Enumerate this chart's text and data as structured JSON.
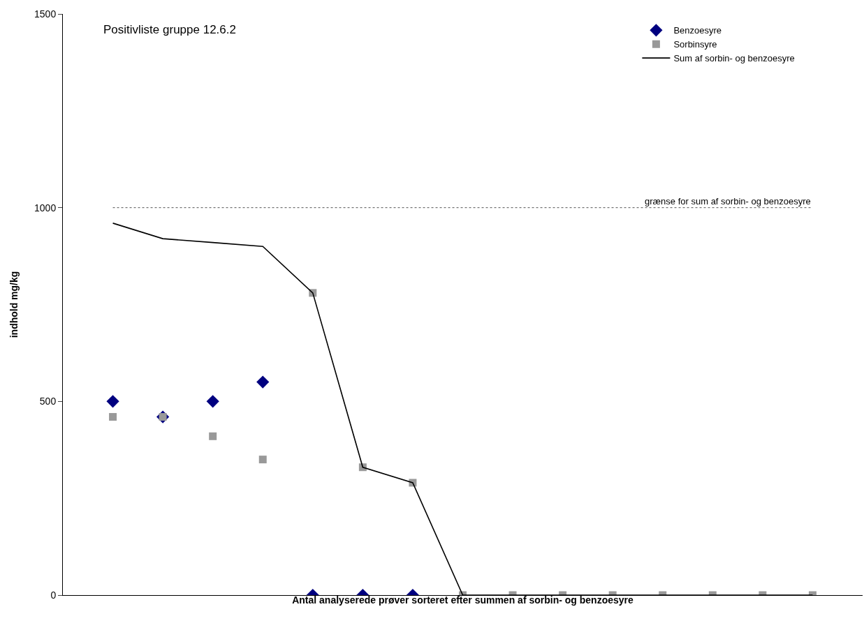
{
  "chart_data": {
    "type": "scatter",
    "title": "Positivliste gruppe 12.6.2",
    "xlabel": "Antal analyserede prøver sorteret efter summen af sorbin- og benzoesyre",
    "ylabel": "indhold mg/kg",
    "categories": [
      null,
      null,
      null,
      null,
      null,
      null,
      null,
      null,
      null,
      null,
      null,
      null,
      null,
      null,
      null
    ],
    "series": [
      {
        "name": "Benzoesyre",
        "color": "#000080",
        "marker": "diamond",
        "values": [
          500,
          460,
          500,
          550,
          0,
          0,
          0,
          null,
          null,
          null,
          null,
          null,
          null,
          null,
          null
        ]
      },
      {
        "name": "Sorbinsyre",
        "color": "#999999",
        "marker": "square",
        "values": [
          460,
          460,
          410,
          350,
          780,
          330,
          290,
          0,
          0,
          0,
          0,
          0,
          0,
          0,
          0
        ]
      },
      {
        "name": "Sum af sorbin- og benzoesyre",
        "type": "line",
        "color": "#000000",
        "marker": "none",
        "line_style": "solid",
        "values": [
          960,
          920,
          910,
          900,
          780,
          330,
          290,
          0,
          0,
          0,
          0,
          0,
          0,
          0,
          0
        ]
      }
    ],
    "ylim": [
      0,
      1500
    ],
    "yticks": [
      0,
      500,
      1000,
      1500
    ],
    "grid": false,
    "legend": "top right",
    "tick_labels": "y",
    "ref_lines": [
      {
        "axis": "y",
        "value": 1000,
        "label": "grænse for sum af sorbin- og benzoesyre",
        "color": "#555555",
        "line_style": "dotted"
      }
    ]
  }
}
